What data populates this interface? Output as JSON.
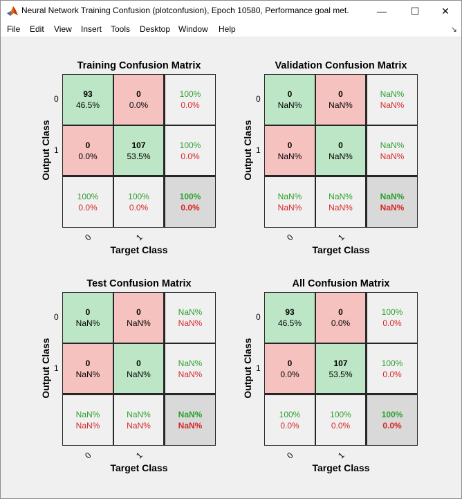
{
  "window": {
    "title": "Neural Network Training Confusion (plotconfusion), Epoch 10580, Performance goal met.",
    "minimize_glyph": "—",
    "maximize_glyph": "☐",
    "close_glyph": "✕",
    "app_icon": "matlab-icon"
  },
  "menu": {
    "file": "File",
    "edit": "Edit",
    "view": "View",
    "insert": "Insert",
    "tools": "Tools",
    "desktop": "Desktop",
    "window": "Window",
    "help": "Help",
    "dock_glyph": "↘"
  },
  "colors": {
    "diag": "#bce6c5",
    "off_diag": "#f6c2c0",
    "margin": "#f0f0f0",
    "corner": "#d9d9d9",
    "green_text": "#2ca02c",
    "red_text": "#d62728"
  },
  "chart_data": [
    {
      "type": "table",
      "title": "Training Confusion Matrix",
      "xlabel": "Target Class",
      "ylabel": "Output Class",
      "xticks": [
        "0",
        "1"
      ],
      "yticks": [
        "0",
        "1"
      ],
      "cells": [
        [
          {
            "count": "93",
            "pct": "46.5%"
          },
          {
            "count": "0",
            "pct": "0.0%"
          },
          {
            "good": "100%",
            "bad": "0.0%"
          }
        ],
        [
          {
            "count": "0",
            "pct": "0.0%"
          },
          {
            "count": "107",
            "pct": "53.5%"
          },
          {
            "good": "100%",
            "bad": "0.0%"
          }
        ],
        [
          {
            "good": "100%",
            "bad": "0.0%"
          },
          {
            "good": "100%",
            "bad": "0.0%"
          },
          {
            "good": "100%",
            "bad": "0.0%"
          }
        ]
      ]
    },
    {
      "type": "table",
      "title": "Validation Confusion Matrix",
      "xlabel": "Target Class",
      "ylabel": "Output Class",
      "xticks": [
        "0",
        "1"
      ],
      "yticks": [
        "0",
        "1"
      ],
      "cells": [
        [
          {
            "count": "0",
            "pct": "NaN%"
          },
          {
            "count": "0",
            "pct": "NaN%"
          },
          {
            "good": "NaN%",
            "bad": "NaN%"
          }
        ],
        [
          {
            "count": "0",
            "pct": "NaN%"
          },
          {
            "count": "0",
            "pct": "NaN%"
          },
          {
            "good": "NaN%",
            "bad": "NaN%"
          }
        ],
        [
          {
            "good": "NaN%",
            "bad": "NaN%"
          },
          {
            "good": "NaN%",
            "bad": "NaN%"
          },
          {
            "good": "NaN%",
            "bad": "NaN%"
          }
        ]
      ]
    },
    {
      "type": "table",
      "title": "Test Confusion Matrix",
      "xlabel": "Target Class",
      "ylabel": "Output Class",
      "xticks": [
        "0",
        "1"
      ],
      "yticks": [
        "0",
        "1"
      ],
      "cells": [
        [
          {
            "count": "0",
            "pct": "NaN%"
          },
          {
            "count": "0",
            "pct": "NaN%"
          },
          {
            "good": "NaN%",
            "bad": "NaN%"
          }
        ],
        [
          {
            "count": "0",
            "pct": "NaN%"
          },
          {
            "count": "0",
            "pct": "NaN%"
          },
          {
            "good": "NaN%",
            "bad": "NaN%"
          }
        ],
        [
          {
            "good": "NaN%",
            "bad": "NaN%"
          },
          {
            "good": "NaN%",
            "bad": "NaN%"
          },
          {
            "good": "NaN%",
            "bad": "NaN%"
          }
        ]
      ]
    },
    {
      "type": "table",
      "title": "All Confusion Matrix",
      "xlabel": "Target Class",
      "ylabel": "Output Class",
      "xticks": [
        "0",
        "1"
      ],
      "yticks": [
        "0",
        "1"
      ],
      "cells": [
        [
          {
            "count": "93",
            "pct": "46.5%"
          },
          {
            "count": "0",
            "pct": "0.0%"
          },
          {
            "good": "100%",
            "bad": "0.0%"
          }
        ],
        [
          {
            "count": "0",
            "pct": "0.0%"
          },
          {
            "count": "107",
            "pct": "53.5%"
          },
          {
            "good": "100%",
            "bad": "0.0%"
          }
        ],
        [
          {
            "good": "100%",
            "bad": "0.0%"
          },
          {
            "good": "100%",
            "bad": "0.0%"
          },
          {
            "good": "100%",
            "bad": "0.0%"
          }
        ]
      ]
    }
  ]
}
